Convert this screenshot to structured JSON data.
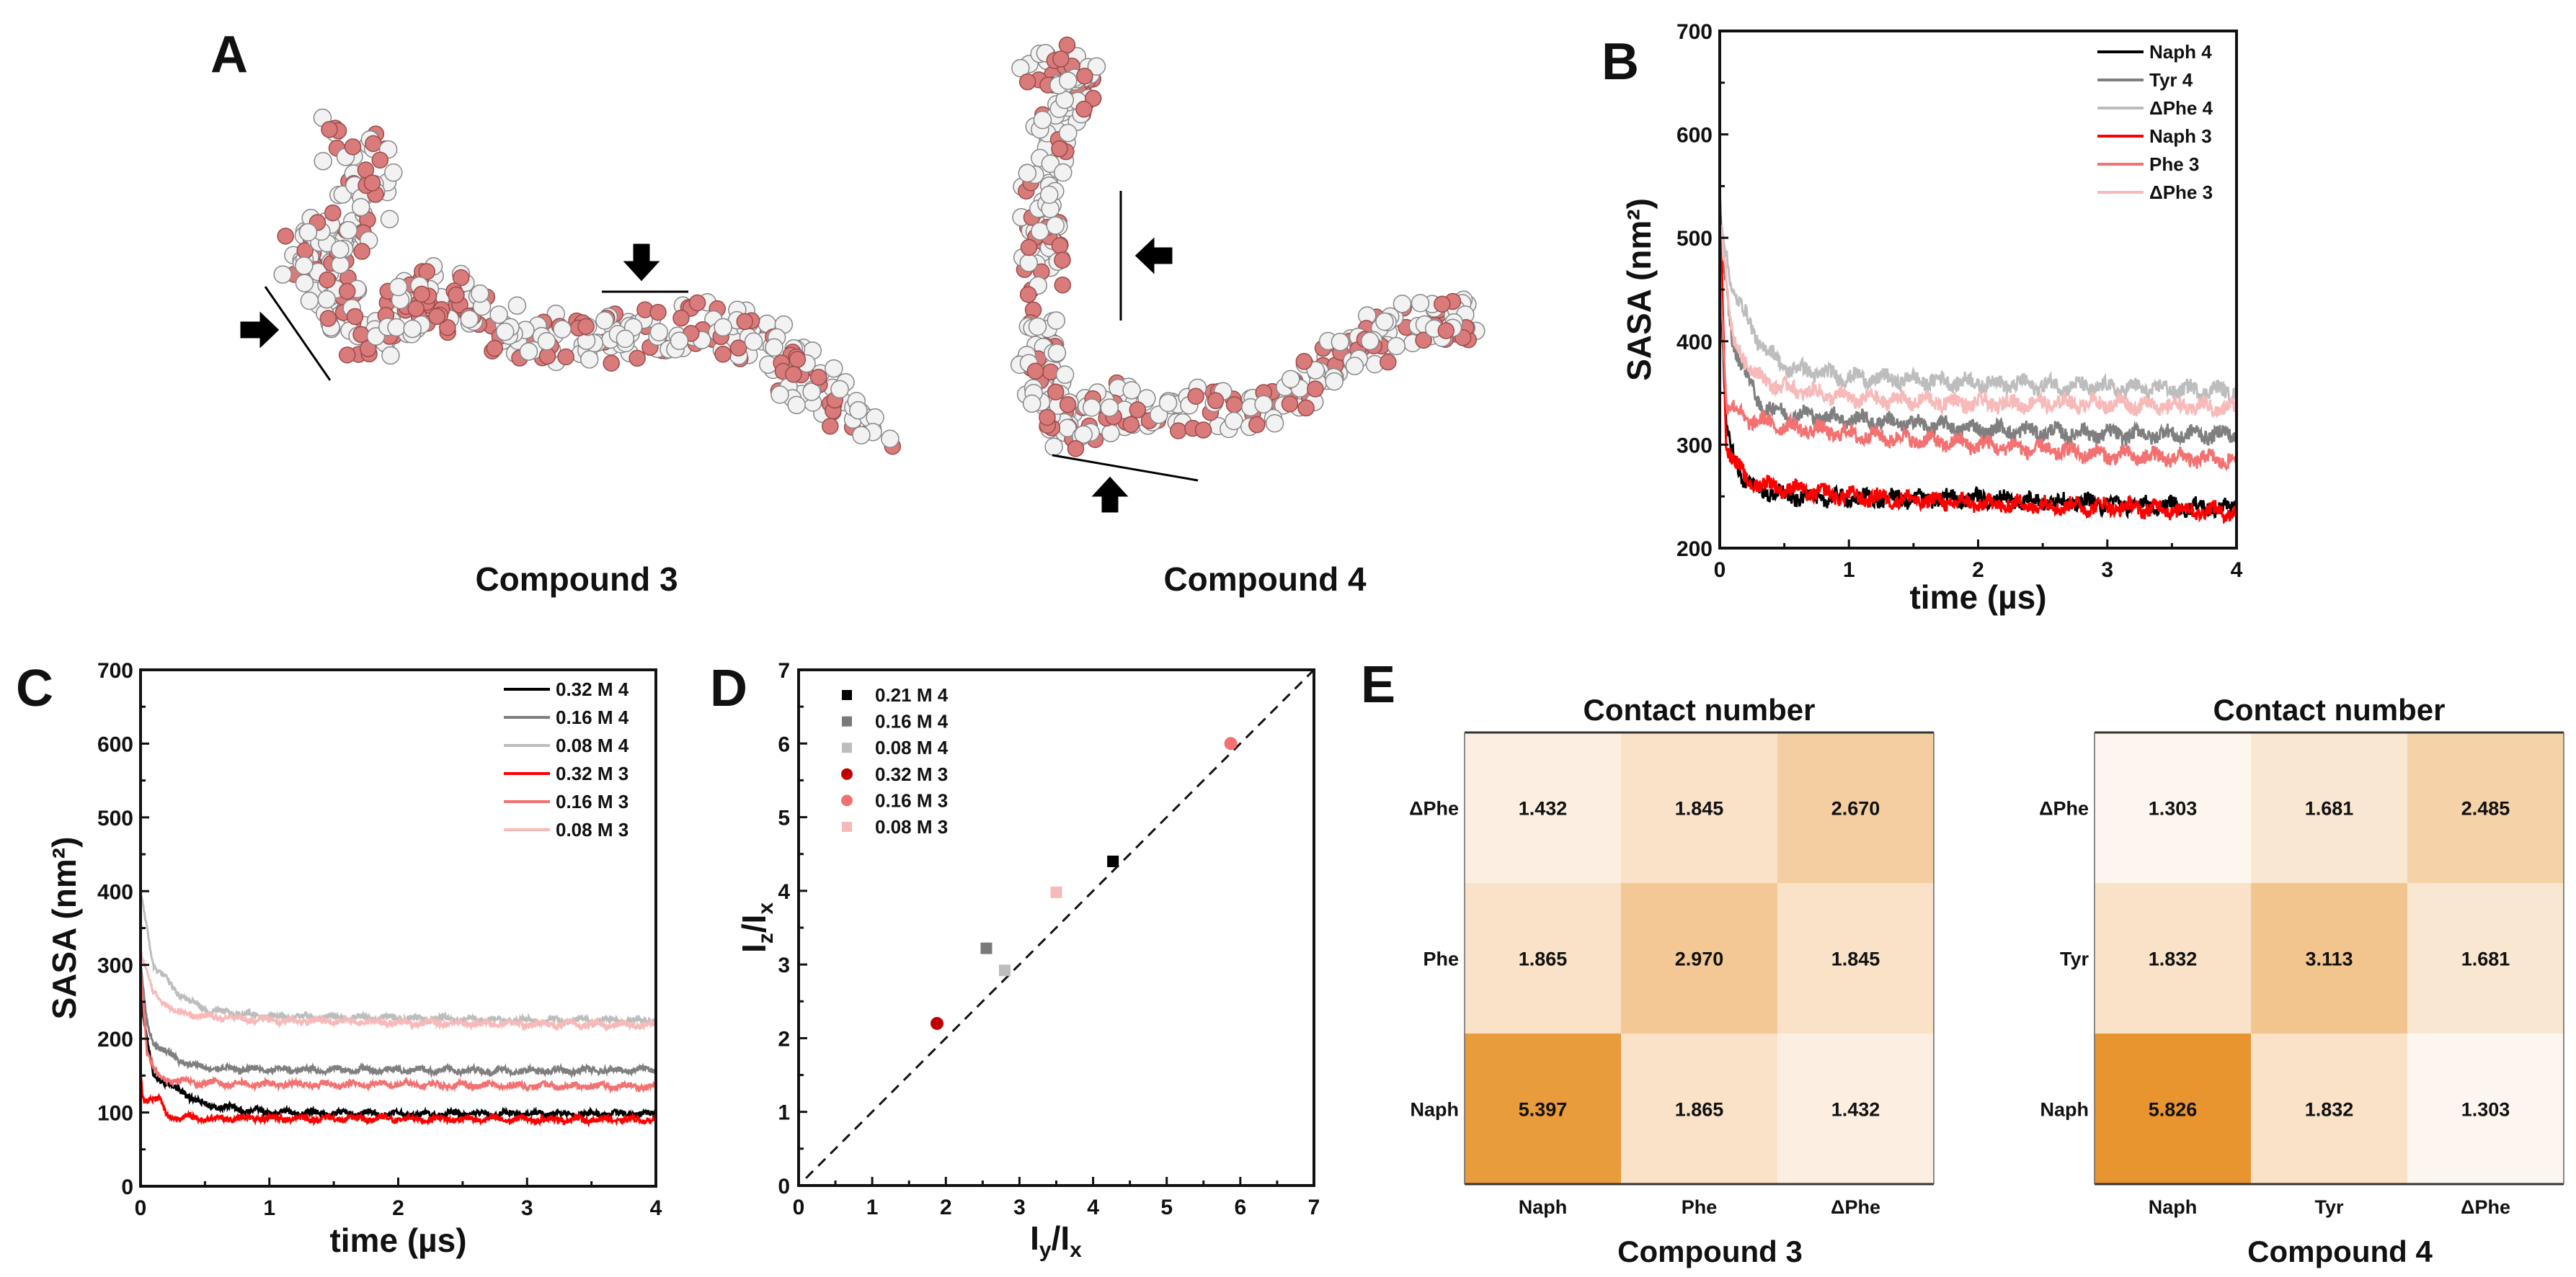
{
  "panels": {
    "A": "A",
    "B": "B",
    "C": "C",
    "D": "D",
    "E": "E"
  },
  "panel_a": {
    "compound3_label": "Compound 3",
    "compound4_label": "Compound 4"
  },
  "chart_data": [
    {
      "id": "B",
      "type": "line",
      "xlabel": "time (µs)",
      "ylabel": "SASA (nm²)",
      "xlim": [
        0,
        4
      ],
      "ylim": [
        200,
        700
      ],
      "xticks": [
        0,
        1,
        2,
        3,
        4
      ],
      "yticks": [
        200,
        300,
        400,
        500,
        600,
        700
      ],
      "legend_position": "top-right",
      "series": [
        {
          "name": "Naph 4",
          "color": "#000000",
          "t": [
            0,
            0.05,
            0.2,
            0.5,
            1,
            2,
            3,
            4
          ],
          "values": [
            480,
            310,
            262,
            250,
            248,
            248,
            243,
            238
          ]
        },
        {
          "name": "Tyr 4",
          "color": "#7f7f7f",
          "t": [
            0,
            0.1,
            0.3,
            0.5,
            1,
            2,
            3,
            4
          ],
          "values": [
            500,
            400,
            340,
            330,
            325,
            315,
            310,
            310
          ]
        },
        {
          "name": "ΔPhe 4",
          "color": "#bdbdbd",
          "t": [
            0,
            0.1,
            0.3,
            0.5,
            1,
            2,
            3,
            4
          ],
          "values": [
            520,
            450,
            400,
            375,
            365,
            360,
            355,
            352
          ]
        },
        {
          "name": "Naph 3",
          "color": "#ff0000",
          "t": [
            0,
            0.05,
            0.2,
            0.5,
            1,
            2,
            3,
            4
          ],
          "values": [
            560,
            300,
            265,
            258,
            250,
            243,
            240,
            235
          ]
        },
        {
          "name": "Phe 3",
          "color": "#f37171",
          "t": [
            0,
            0.05,
            0.2,
            0.5,
            1,
            2,
            3,
            4
          ],
          "values": [
            480,
            340,
            325,
            318,
            310,
            300,
            290,
            285
          ]
        },
        {
          "name": "ΔPhe 3",
          "color": "#f8b9b9",
          "t": [
            0,
            0.1,
            0.3,
            0.5,
            1,
            2,
            3,
            4
          ],
          "values": [
            520,
            400,
            365,
            355,
            345,
            340,
            340,
            335
          ]
        }
      ]
    },
    {
      "id": "C",
      "type": "line",
      "xlabel": "time (µs)",
      "ylabel": "SASA (nm²)",
      "xlim": [
        0,
        4
      ],
      "ylim": [
        0,
        700
      ],
      "xticks": [
        0,
        1,
        2,
        3,
        4
      ],
      "yticks": [
        0,
        100,
        200,
        300,
        400,
        500,
        600,
        700
      ],
      "legend_position": "top-right",
      "series": [
        {
          "name": "0.32 M 4",
          "color": "#000000",
          "t": [
            0,
            0.05,
            0.1,
            0.3,
            0.5,
            1,
            2,
            3,
            4
          ],
          "values": [
            250,
            200,
            150,
            130,
            110,
            100,
            98,
            98,
            98
          ]
        },
        {
          "name": "0.16 M 4",
          "color": "#7f7f7f",
          "t": [
            0,
            0.05,
            0.1,
            0.3,
            0.5,
            1,
            2,
            3,
            4
          ],
          "values": [
            300,
            220,
            195,
            170,
            160,
            158,
            158,
            156,
            158
          ]
        },
        {
          "name": "0.08 M 4",
          "color": "#bdbdbd",
          "t": [
            0,
            0.1,
            0.3,
            0.5,
            1,
            2,
            3,
            4
          ],
          "values": [
            400,
            300,
            260,
            240,
            230,
            228,
            225,
            225
          ]
        },
        {
          "name": "0.32 M 3",
          "color": "#ff0000",
          "t": [
            0,
            0.02,
            0.15,
            0.2,
            0.5,
            1,
            4
          ],
          "values": [
            150,
            120,
            118,
            95,
            92,
            92,
            90
          ]
        },
        {
          "name": "0.16 M 3",
          "color": "#f37171",
          "t": [
            0,
            0.05,
            0.15,
            0.5,
            1,
            2,
            3,
            4
          ],
          "values": [
            300,
            180,
            145,
            140,
            138,
            138,
            136,
            135
          ]
        },
        {
          "name": "0.08 M 3",
          "color": "#f8b9b9",
          "t": [
            0,
            0.1,
            0.3,
            0.5,
            1,
            2,
            3,
            4
          ],
          "values": [
            320,
            260,
            235,
            230,
            225,
            222,
            220,
            218
          ]
        }
      ]
    },
    {
      "id": "D",
      "type": "scatter",
      "xlabel_parts": [
        "I",
        "y",
        "/I",
        "x"
      ],
      "ylabel_parts": [
        "I",
        "z",
        "/I",
        "x"
      ],
      "xlim": [
        0,
        7
      ],
      "ylim": [
        0,
        7
      ],
      "xticks": [
        0,
        1,
        2,
        3,
        4,
        5,
        6,
        7
      ],
      "yticks": [
        0,
        1,
        2,
        3,
        4,
        5,
        6,
        7
      ],
      "reference_line": "y = x (dashed)",
      "legend_position": "top-left",
      "points": [
        {
          "name": "0.21 M 4",
          "color": "#000000",
          "marker": "square",
          "x": 4.27,
          "y": 4.4
        },
        {
          "name": "0.16 M 4",
          "color": "#7a7a7a",
          "marker": "square",
          "x": 2.55,
          "y": 3.22
        },
        {
          "name": "0.08 M 4",
          "color": "#bdbdbd",
          "marker": "square",
          "x": 2.8,
          "y": 2.92
        },
        {
          "name": "0.32 M 3",
          "color": "#c00000",
          "marker": "circle",
          "x": 1.88,
          "y": 2.2
        },
        {
          "name": "0.16 M 3",
          "color": "#f37171",
          "marker": "circle",
          "x": 5.87,
          "y": 6.0
        },
        {
          "name": "0.08 M 3",
          "color": "#f8b9b9",
          "marker": "square",
          "x": 3.5,
          "y": 3.98
        }
      ]
    },
    {
      "id": "E1",
      "type": "heatmap",
      "title": "Contact number",
      "xlabel": "Compound 3",
      "x_categories": [
        "Naph",
        "Phe",
        "ΔPhe"
      ],
      "y_categories_top_to_bottom": [
        "ΔPhe",
        "Phe",
        "Naph"
      ],
      "values": [
        [
          "1.432",
          "1.845",
          "2.670"
        ],
        [
          "1.865",
          "2.970",
          "1.845"
        ],
        [
          "5.397",
          "1.865",
          "1.432"
        ]
      ]
    },
    {
      "id": "E2",
      "type": "heatmap",
      "title": "Contact number",
      "xlabel": "Compound 4",
      "x_categories": [
        "Naph",
        "Tyr",
        "ΔPhe"
      ],
      "y_categories_top_to_bottom": [
        "ΔPhe",
        "Tyr",
        "Naph"
      ],
      "values": [
        [
          "1.303",
          "1.681",
          "2.485"
        ],
        [
          "1.832",
          "3.113",
          "1.681"
        ],
        [
          "5.826",
          "1.832",
          "1.303"
        ]
      ]
    }
  ],
  "colors": {
    "heat_low": "#fdf6ef",
    "heat_high": "#e8952f",
    "atom_oxygen": "#d97b7b",
    "atom_hydrogen": "#f2f2f2"
  }
}
